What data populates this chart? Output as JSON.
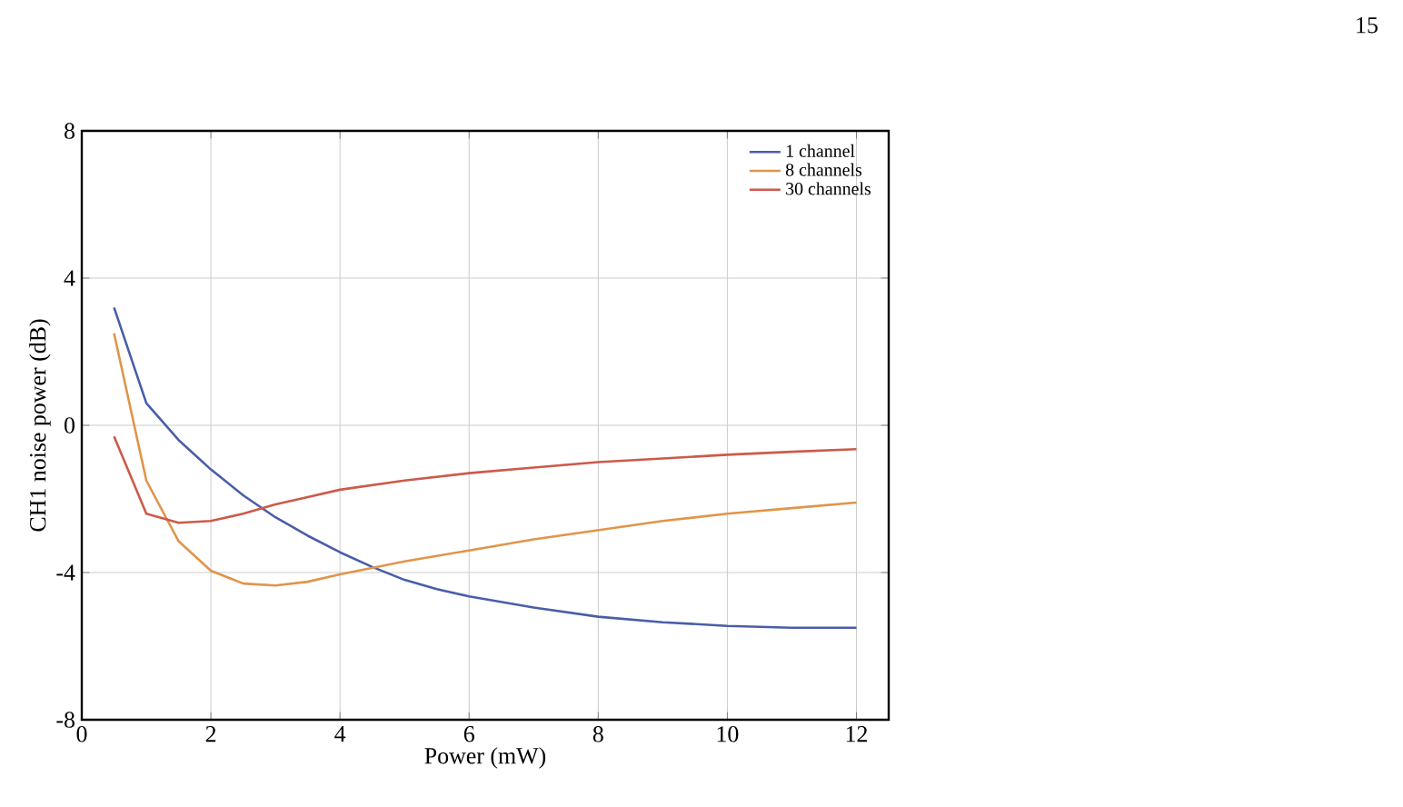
{
  "chart_data": {
    "type": "line",
    "xlabel": "Power (mW)",
    "ylabel": "CH1 noise power (dB)",
    "annotations": [
      "15"
    ],
    "xlim": [
      0,
      12.5
    ],
    "ylim": [
      -8,
      8
    ],
    "xticks": [
      0,
      2,
      4,
      6,
      8,
      10,
      12
    ],
    "yticks": [
      -8,
      -4,
      0,
      4,
      8
    ],
    "grid": true,
    "legend": "top right",
    "marker": "none",
    "line_style": "solid",
    "series": [
      {
        "name": "1 channel",
        "color": "#4a5ea8",
        "x": [
          0.5,
          1,
          1.5,
          2,
          2.5,
          3,
          3.5,
          4,
          4.5,
          5,
          5.5,
          6,
          7,
          8,
          9,
          10,
          11,
          12
        ],
        "values": [
          3.2,
          0.6,
          -0.4,
          -1.2,
          -1.9,
          -2.5,
          -3.0,
          -3.45,
          -3.85,
          -4.2,
          -4.45,
          -4.65,
          -4.95,
          -5.2,
          -5.35,
          -5.45,
          -5.5,
          -5.5
        ]
      },
      {
        "name": "8 channels",
        "color": "#e0954a",
        "x": [
          0.5,
          1,
          1.5,
          2,
          2.5,
          3,
          3.5,
          4,
          5,
          6,
          7,
          8,
          9,
          10,
          11,
          12
        ],
        "values": [
          2.5,
          -1.5,
          -3.15,
          -3.95,
          -4.3,
          -4.35,
          -4.25,
          -4.05,
          -3.7,
          -3.4,
          -3.1,
          -2.85,
          -2.6,
          -2.4,
          -2.25,
          -2.1
        ]
      },
      {
        "name": "30 channels",
        "color": "#cc5a4a",
        "x": [
          0.5,
          1,
          1.5,
          2,
          2.5,
          3,
          3.5,
          4,
          5,
          6,
          7,
          8,
          9,
          10,
          11,
          12
        ],
        "values": [
          -0.3,
          -2.4,
          -2.65,
          -2.6,
          -2.4,
          -2.15,
          -1.95,
          -1.75,
          -1.5,
          -1.3,
          -1.15,
          -1.0,
          -0.9,
          -0.8,
          -0.72,
          -0.65
        ]
      }
    ]
  }
}
